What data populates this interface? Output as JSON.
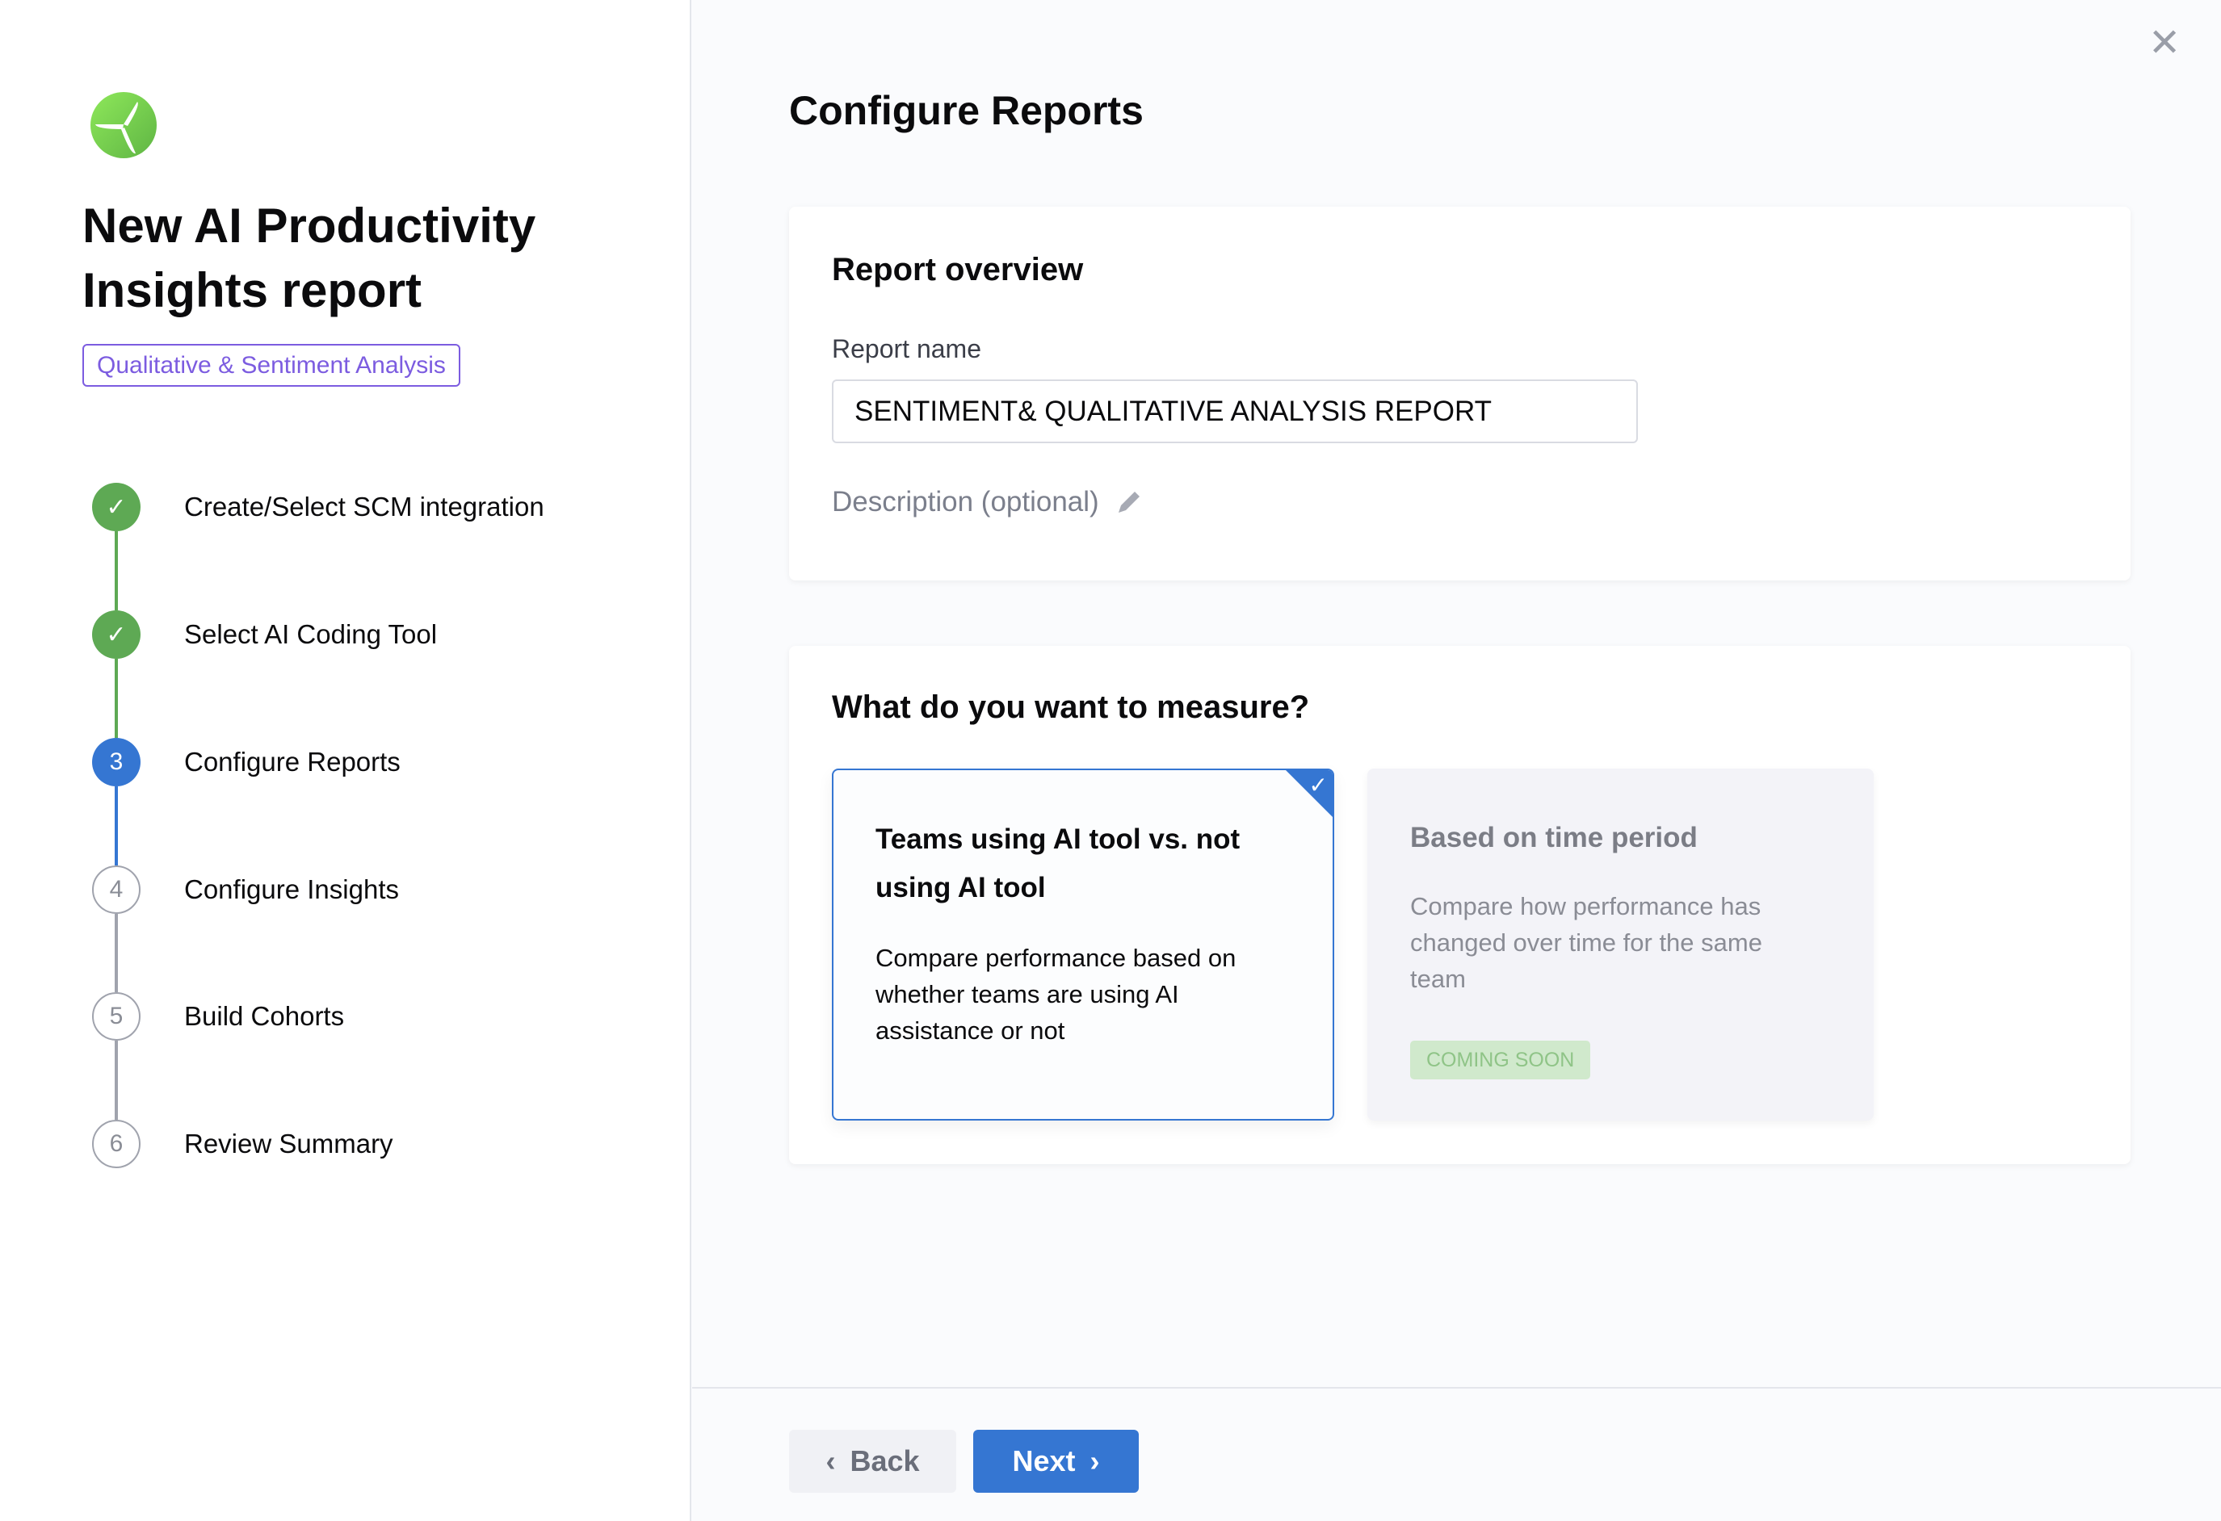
{
  "sidebar": {
    "title": "New AI Productivity Insights report",
    "badge": "Qualitative & Sentiment Analysis",
    "steps": [
      {
        "number": "1",
        "label": "Create/Select SCM integration",
        "status": "done"
      },
      {
        "number": "2",
        "label": "Select AI Coding Tool",
        "status": "done"
      },
      {
        "number": "3",
        "label": "Configure Reports",
        "status": "current"
      },
      {
        "number": "4",
        "label": "Configure Insights",
        "status": "todo"
      },
      {
        "number": "5",
        "label": "Build Cohorts",
        "status": "todo"
      },
      {
        "number": "6",
        "label": "Review Summary",
        "status": "todo"
      }
    ]
  },
  "main": {
    "title": "Configure Reports",
    "overview": {
      "heading": "Report overview",
      "name_label": "Report name",
      "name_value": "SENTIMENT& QUALITATIVE ANALYSIS REPORT",
      "description_label": "Description (optional)"
    },
    "measure": {
      "heading": "What do you want to measure?",
      "options": [
        {
          "title": "Teams using AI tool vs. not using AI tool",
          "description": "Compare performance based on whether teams are using AI assistance or not",
          "selected": true
        },
        {
          "title": "Based on time period",
          "description": "Compare how performance has changed over time for the same team",
          "badge": "COMING SOON",
          "selected": false
        }
      ]
    }
  },
  "footer": {
    "back_label": "Back",
    "next_label": "Next"
  },
  "colors": {
    "primary": "#3576d2",
    "success": "#5ea954",
    "accent": "#7c5ce0"
  }
}
